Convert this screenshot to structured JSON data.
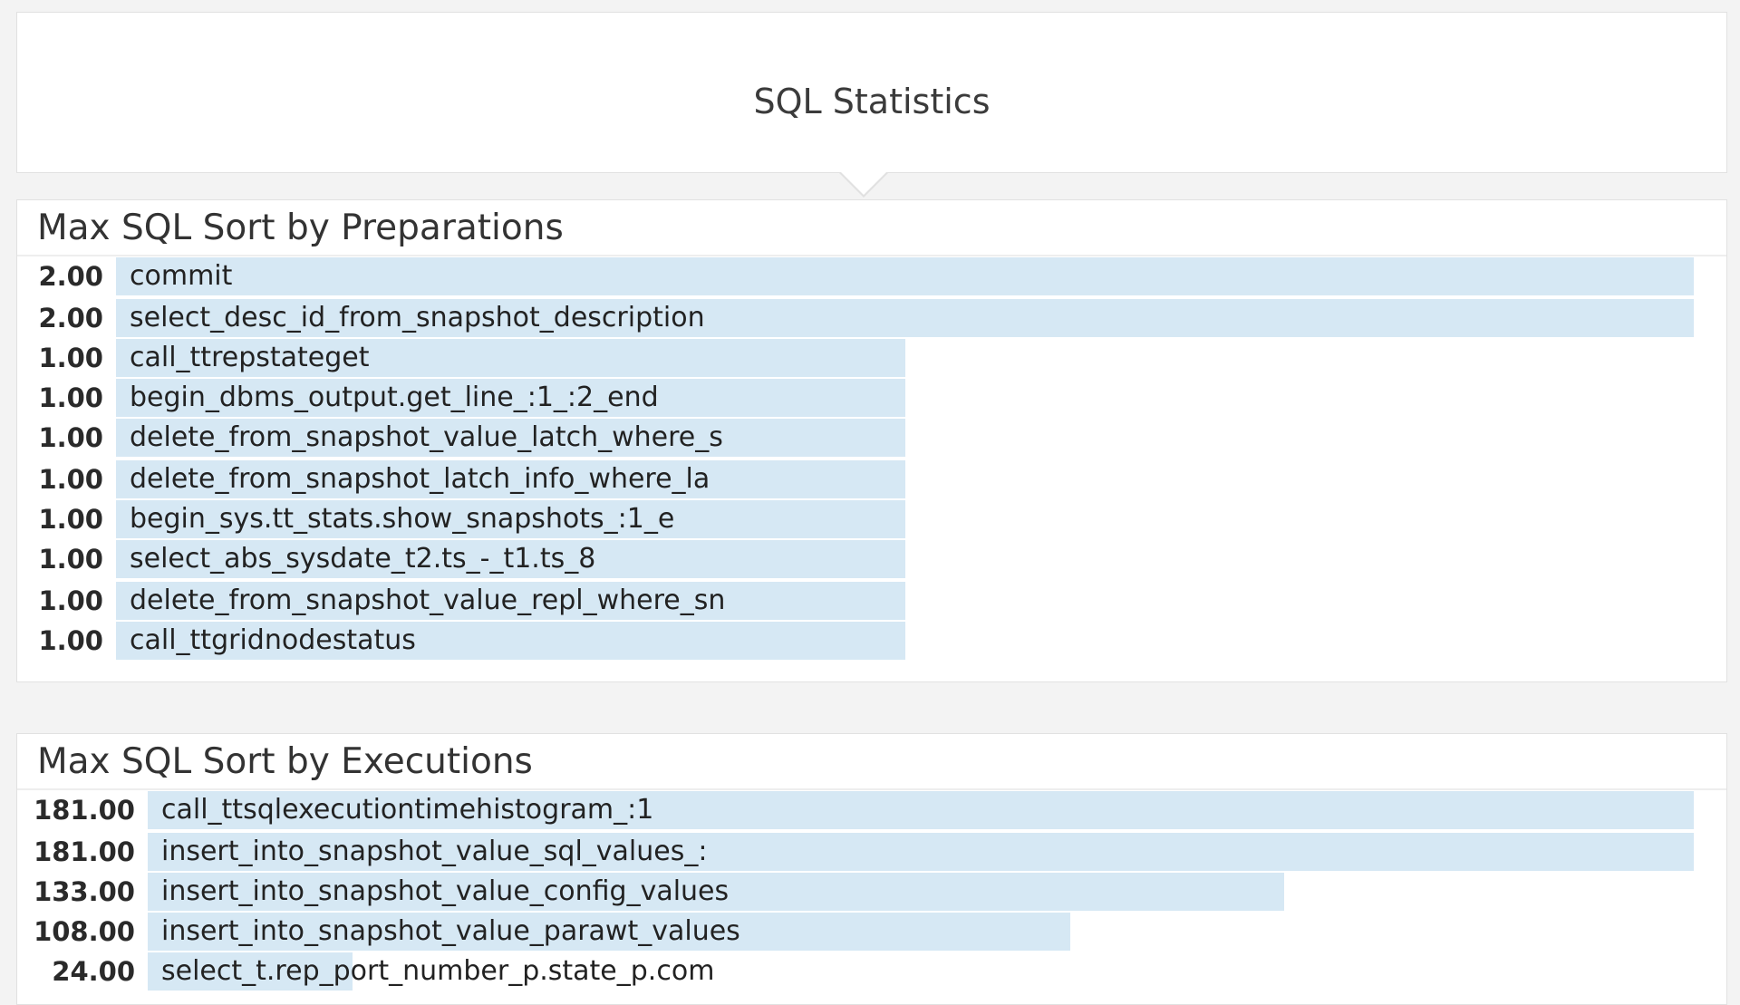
{
  "header": {
    "title": "SQL Statistics"
  },
  "widgets": [
    {
      "title": "Max SQL Sort by Preparations",
      "max": 2.0,
      "rows": [
        {
          "value": "2.00",
          "amount": 2.0,
          "label": "commit"
        },
        {
          "value": "2.00",
          "amount": 2.0,
          "label": "select_desc_id_from_snapshot_description"
        },
        {
          "value": "1.00",
          "amount": 1.0,
          "label": "call_ttrepstateget"
        },
        {
          "value": "1.00",
          "amount": 1.0,
          "label": "begin_dbms_output.get_line_:1_:2_end"
        },
        {
          "value": "1.00",
          "amount": 1.0,
          "label": "delete_from_snapshot_value_latch_where_s"
        },
        {
          "value": "1.00",
          "amount": 1.0,
          "label": "delete_from_snapshot_latch_info_where_la"
        },
        {
          "value": "1.00",
          "amount": 1.0,
          "label": "begin_sys.tt_stats.show_snapshots_:1_e"
        },
        {
          "value": "1.00",
          "amount": 1.0,
          "label": "select_abs_sysdate_t2.ts_-_t1.ts_8"
        },
        {
          "value": "1.00",
          "amount": 1.0,
          "label": "delete_from_snapshot_value_repl_where_sn"
        },
        {
          "value": "1.00",
          "amount": 1.0,
          "label": "call_ttgridnodestatus"
        }
      ]
    },
    {
      "title": "Max SQL Sort by Executions",
      "max": 181.0,
      "rows": [
        {
          "value": "181.00",
          "amount": 181.0,
          "label": "call_ttsqlexecutiontimehistogram_:1"
        },
        {
          "value": "181.00",
          "amount": 181.0,
          "label": "insert_into_snapshot_value_sql_values_:"
        },
        {
          "value": "133.00",
          "amount": 133.0,
          "label": "insert_into_snapshot_value_config_values"
        },
        {
          "value": "108.00",
          "amount": 108.0,
          "label": "insert_into_snapshot_value_parawt_values"
        },
        {
          "value": "24.00",
          "amount": 24.0,
          "label": "select_t.rep_port_number_p.state_p.com"
        }
      ]
    }
  ],
  "colors": {
    "bar": "#d6e8f4",
    "panel_background": "#ffffff",
    "page_background": "#f3f3f3"
  }
}
